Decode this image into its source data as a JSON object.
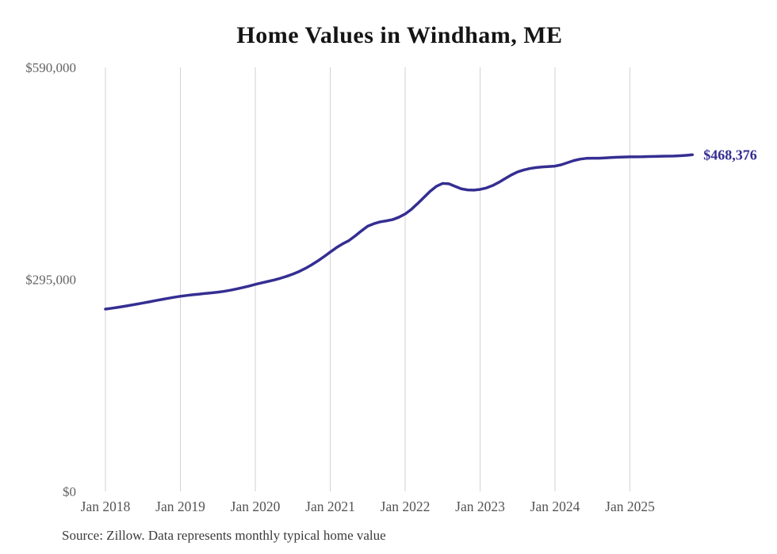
{
  "chart_data": {
    "type": "line",
    "title": "Home Values in Windham, ME",
    "xlabel": "",
    "ylabel": "",
    "ylim": [
      0,
      590000
    ],
    "grid": "vertical-only",
    "legend": "none",
    "line_color": "#342e92",
    "grid_color": "#d2d2d2",
    "end_label": "$468,376",
    "end_value": 468376,
    "y_ticks": [
      {
        "value": 0,
        "label": "$0"
      },
      {
        "value": 295000,
        "label": "$295,000"
      },
      {
        "value": 590000,
        "label": "$590,000"
      }
    ],
    "x_ticks": [
      {
        "label": "Jan 2018",
        "month_index": 0
      },
      {
        "label": "Jan 2019",
        "month_index": 12
      },
      {
        "label": "Jan 2020",
        "month_index": 24
      },
      {
        "label": "Jan 2021",
        "month_index": 36
      },
      {
        "label": "Jan 2022",
        "month_index": 48
      },
      {
        "label": "Jan 2023",
        "month_index": 60
      },
      {
        "label": "Jan 2024",
        "month_index": 72
      },
      {
        "label": "Jan 2025",
        "month_index": 84
      }
    ],
    "x": [
      "2018-01",
      "2018-02",
      "2018-03",
      "2018-04",
      "2018-05",
      "2018-06",
      "2018-07",
      "2018-08",
      "2018-09",
      "2018-10",
      "2018-11",
      "2018-12",
      "2019-01",
      "2019-02",
      "2019-03",
      "2019-04",
      "2019-05",
      "2019-06",
      "2019-07",
      "2019-08",
      "2019-09",
      "2019-10",
      "2019-11",
      "2019-12",
      "2020-01",
      "2020-02",
      "2020-03",
      "2020-04",
      "2020-05",
      "2020-06",
      "2020-07",
      "2020-08",
      "2020-09",
      "2020-10",
      "2020-11",
      "2020-12",
      "2021-01",
      "2021-02",
      "2021-03",
      "2021-04",
      "2021-05",
      "2021-06",
      "2021-07",
      "2021-08",
      "2021-09",
      "2021-10",
      "2021-11",
      "2021-12",
      "2022-01",
      "2022-02",
      "2022-03",
      "2022-04",
      "2022-05",
      "2022-06",
      "2022-07",
      "2022-08",
      "2022-09",
      "2022-10",
      "2022-11",
      "2022-12",
      "2023-01",
      "2023-02",
      "2023-03",
      "2023-04",
      "2023-05",
      "2023-06",
      "2023-07",
      "2023-08",
      "2023-09",
      "2023-10",
      "2023-11",
      "2023-12",
      "2024-01",
      "2024-02",
      "2024-03",
      "2024-04",
      "2024-05",
      "2024-06",
      "2024-07",
      "2024-08",
      "2024-09",
      "2024-10",
      "2024-11",
      "2024-12",
      "2025-01",
      "2025-02",
      "2025-03",
      "2025-04",
      "2025-05",
      "2025-06",
      "2025-07",
      "2025-08",
      "2025-09",
      "2025-10",
      "2025-11"
    ],
    "values": [
      253600,
      254800,
      256100,
      257500,
      259000,
      260500,
      262100,
      263700,
      265400,
      267000,
      268600,
      270100,
      271500,
      272600,
      273600,
      274500,
      275400,
      276300,
      277200,
      278400,
      279900,
      281700,
      283600,
      285700,
      288000,
      290100,
      292100,
      294100,
      296500,
      299200,
      302300,
      305900,
      310200,
      315100,
      320600,
      326600,
      333000,
      339200,
      344500,
      349000,
      355500,
      362500,
      369000,
      372500,
      375000,
      376500,
      378200,
      381500,
      386000,
      392500,
      400500,
      409000,
      417500,
      424500,
      428500,
      428000,
      424500,
      421000,
      419500,
      419200,
      420200,
      422200,
      425500,
      430000,
      435200,
      440300,
      444500,
      447300,
      449300,
      450600,
      451400,
      452000,
      452600,
      454500,
      457400,
      460300,
      462300,
      463400,
      463600,
      463600,
      464000,
      464500,
      465000,
      465300,
      465500,
      465500,
      465600,
      465900,
      466100,
      466400,
      466500,
      466600,
      467000,
      467600,
      468376
    ]
  },
  "source_note": "Source: Zillow. Data represents monthly typical home value"
}
